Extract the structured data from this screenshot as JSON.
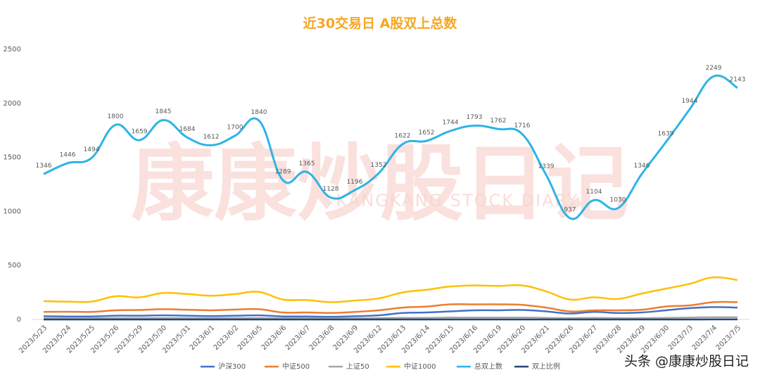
{
  "chart_data": {
    "type": "line",
    "title": "近30交易日 A股双上总数",
    "watermark": "康康炒股日记",
    "watermark_subtitle": "KANGKANG STOCK DIARY",
    "credit": "头条 @康康炒股日记",
    "categories": [
      "2023/5/23",
      "2023/5/24",
      "2023/5/25",
      "2023/5/26",
      "2023/5/29",
      "2023/5/30",
      "2023/5/31",
      "2023/6/1",
      "2023/6/2",
      "2023/6/5",
      "2023/6/6",
      "2023/6/7",
      "2023/6/8",
      "2023/6/9",
      "2023/6/12",
      "2023/6/13",
      "2023/6/14",
      "2023/6/15",
      "2023/6/16",
      "2023/6/19",
      "2023/6/20",
      "2023/6/21",
      "2023/6/26",
      "2023/6/27",
      "2023/6/28",
      "2023/6/29",
      "2023/6/30",
      "2023/7/3",
      "2023/7/4",
      "2023/7/5"
    ],
    "series": [
      {
        "name": "沪深300",
        "color": "#4472c4",
        "values": [
          30,
          28,
          28,
          35,
          35,
          38,
          35,
          32,
          35,
          38,
          28,
          28,
          25,
          30,
          38,
          60,
          65,
          75,
          85,
          85,
          88,
          75,
          55,
          70,
          60,
          65,
          85,
          105,
          115,
          110
        ]
      },
      {
        "name": "中证500",
        "color": "#ed7d31",
        "values": [
          70,
          72,
          70,
          85,
          88,
          95,
          90,
          85,
          92,
          95,
          65,
          65,
          60,
          70,
          85,
          110,
          120,
          140,
          140,
          140,
          135,
          110,
          75,
          85,
          85,
          90,
          120,
          130,
          160,
          160
        ]
      },
      {
        "name": "上证50",
        "color": "#a5a5a5",
        "values": [
          10,
          10,
          10,
          12,
          12,
          12,
          12,
          12,
          12,
          12,
          10,
          10,
          10,
          10,
          12,
          15,
          15,
          18,
          18,
          18,
          18,
          15,
          12,
          15,
          12,
          12,
          15,
          18,
          20,
          20
        ]
      },
      {
        "name": "中证1000",
        "color": "#ffc000",
        "values": [
          170,
          165,
          165,
          215,
          205,
          245,
          235,
          220,
          235,
          255,
          185,
          180,
          160,
          175,
          195,
          250,
          275,
          305,
          315,
          310,
          315,
          260,
          185,
          205,
          190,
          240,
          285,
          330,
          390,
          365
        ]
      },
      {
        "name": "总双上数",
        "color": "#2eb4e6",
        "labels": true,
        "values": [
          1346,
          1446,
          1494,
          1800,
          1659,
          1845,
          1684,
          1612,
          1700,
          1840,
          1289,
          1365,
          1128,
          1196,
          1352,
          1622,
          1652,
          1744,
          1793,
          1762,
          1716,
          1339,
          937,
          1104,
          1030,
          1346,
          1639,
          1944,
          2249,
          2143
        ]
      },
      {
        "name": "双上比例",
        "color": "#264478",
        "values": [
          0.26,
          0.28,
          0.29,
          0.35,
          0.32,
          0.36,
          0.33,
          0.31,
          0.33,
          0.36,
          0.25,
          0.26,
          0.22,
          0.23,
          0.26,
          0.31,
          0.32,
          0.34,
          0.35,
          0.34,
          0.33,
          0.26,
          0.18,
          0.21,
          0.2,
          0.26,
          0.32,
          0.37,
          0.43,
          0.41
        ]
      }
    ],
    "ylim": [
      0,
      2500
    ],
    "yticks": [
      0,
      500,
      1000,
      1500,
      2000,
      2500
    ],
    "grid": false
  }
}
